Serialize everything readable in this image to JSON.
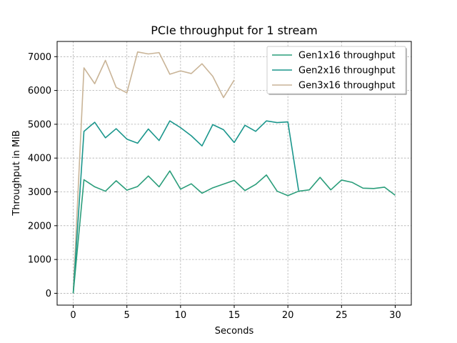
{
  "chart_data": {
    "type": "line",
    "title": "PCIe throughput for 1 stream",
    "xlabel": "Seconds",
    "ylabel": "Throughput in MiB",
    "xlim": [
      -1.5,
      31.5
    ],
    "ylim": [
      -350,
      7450
    ],
    "xticks": [
      0,
      5,
      10,
      15,
      20,
      25,
      30
    ],
    "yticks": [
      0,
      1000,
      2000,
      3000,
      4000,
      5000,
      6000,
      7000
    ],
    "grid": true,
    "legend_position": "top-right",
    "series": [
      {
        "name": "Gen1x16 throughput",
        "color": "#2a9d7a",
        "x": [
          0,
          1,
          2,
          3,
          4,
          5,
          6,
          7,
          8,
          9,
          10,
          11,
          12,
          13,
          14,
          15,
          16,
          17,
          18,
          19,
          20,
          21,
          22,
          23,
          24,
          25,
          26,
          27,
          28,
          29,
          30
        ],
        "values": [
          0,
          3360,
          3150,
          3020,
          3330,
          3050,
          3160,
          3470,
          3150,
          3620,
          3080,
          3240,
          2960,
          3120,
          3230,
          3340,
          3040,
          3220,
          3500,
          3020,
          2890,
          3020,
          3060,
          3430,
          3060,
          3350,
          3280,
          3110,
          3100,
          3140,
          2900
        ]
      },
      {
        "name": "Gen2x16 throughput",
        "color": "#1a968c",
        "x": [
          0,
          1,
          2,
          3,
          4,
          5,
          6,
          7,
          8,
          9,
          10,
          11,
          12,
          13,
          14,
          15,
          16,
          17,
          18,
          19,
          20,
          21
        ],
        "values": [
          0,
          4790,
          5060,
          4600,
          4870,
          4560,
          4440,
          4860,
          4520,
          5100,
          4900,
          4660,
          4360,
          4990,
          4840,
          4460,
          4970,
          4790,
          5100,
          5050,
          5070,
          3040
        ]
      },
      {
        "name": "Gen3x16 throughput",
        "color": "#c9b497",
        "x": [
          0,
          1,
          2,
          3,
          4,
          5,
          6,
          7,
          8,
          9,
          10,
          11,
          12,
          13,
          14,
          15
        ],
        "values": [
          0,
          6670,
          6200,
          6890,
          6090,
          5930,
          7140,
          7080,
          7120,
          6480,
          6580,
          6500,
          6790,
          6420,
          5790,
          6310
        ]
      }
    ]
  }
}
